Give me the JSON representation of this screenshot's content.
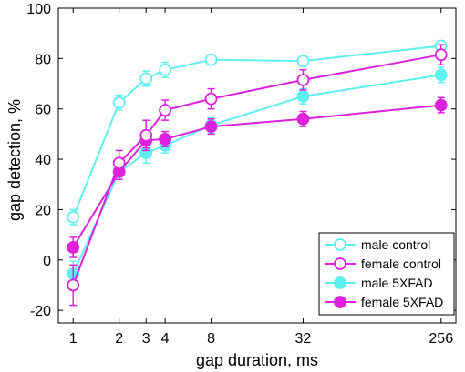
{
  "chart_data": {
    "type": "line",
    "xlabel": "gap duration, ms",
    "ylabel": "gap detection, %",
    "x_scale": "log2",
    "x": [
      1,
      2,
      3,
      4,
      8,
      32,
      256
    ],
    "x_tick_labels": [
      "1",
      "2",
      "3",
      "4",
      "8",
      "32",
      "256"
    ],
    "ylim": [
      -25,
      100
    ],
    "y_ticks": [
      -20,
      0,
      20,
      40,
      60,
      80,
      100
    ],
    "y_tick_labels": [
      "-20",
      "0",
      "20",
      "40",
      "60",
      "80",
      "100"
    ],
    "grid": false,
    "legend_position": "bottom-right",
    "series": [
      {
        "name": "male control",
        "color": "#5ff0ee",
        "marker": "open-circle",
        "values": [
          17,
          62.5,
          72,
          75.5,
          79.5,
          79,
          85
        ],
        "errors": [
          3,
          3,
          3,
          3,
          2,
          2,
          2
        ]
      },
      {
        "name": "female control",
        "color": "#dd22dd",
        "marker": "open-circle",
        "values": [
          -10,
          38.5,
          49.5,
          59.5,
          64,
          71.5,
          81.5
        ],
        "errors": [
          8,
          5,
          6,
          4,
          4,
          4,
          4
        ]
      },
      {
        "name": "male 5XFAD",
        "color": "#5ff0ee",
        "marker": "filled-circle",
        "values": [
          -5.5,
          35,
          42.5,
          45.5,
          53.5,
          65,
          73.5
        ],
        "errors": [
          5,
          3,
          4,
          3,
          3,
          3,
          3
        ]
      },
      {
        "name": "female 5XFAD",
        "color": "#dd22dd",
        "marker": "filled-circle",
        "values": [
          5,
          35,
          47.5,
          48,
          53,
          56,
          61.5
        ],
        "errors": [
          4,
          3,
          3,
          3,
          3,
          3,
          3
        ]
      }
    ]
  }
}
